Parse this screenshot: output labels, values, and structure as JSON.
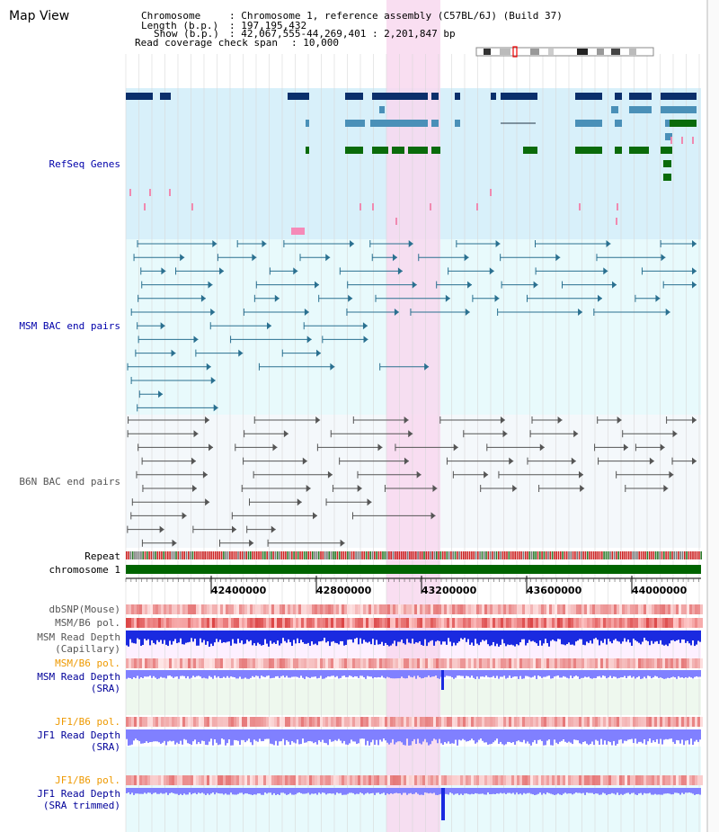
{
  "app": {
    "title": "Map View"
  },
  "header": {
    "chromosome_label": "Chromosome",
    "chromosome_value": ": Chromosome 1, reference assembly (C57BL/6J) (Build 37)",
    "length_label": "Length (b.p.)",
    "length_value": ": 197,195,432",
    "show_label": "Show (b.p.)",
    "show_value": ": 42,067,555-44,269,401 : 2,201,847 bp",
    "coverage_label": "Read coverage check span",
    "coverage_value": ": 10,000"
  },
  "tracks": {
    "refseq": "RefSeq Genes",
    "msm_bac": "MSM BAC end pairs",
    "b6n_bac": "B6N BAC end pairs",
    "repeat": "Repeat",
    "chromosome": "chromosome 1",
    "dbsnp": "dbSNP(Mouse)",
    "msm_b6_pol_1": "MSM/B6 pol.",
    "msm_read_depth_cap_1": "MSM Read Depth",
    "msm_read_depth_cap_2": "(Capillary)",
    "msm_b6_pol_2": "MSM/B6 pol.",
    "msm_read_depth_sra_1": "MSM Read Depth",
    "msm_read_depth_sra_2": "(SRA)",
    "jf1_b6_pol_1": "JF1/B6 pol.",
    "jf1_read_depth_sra_1": "JF1 Read Depth",
    "jf1_read_depth_sra_2": "(SRA)",
    "jf1_b6_pol_2": "JF1/B6 pol.",
    "jf1_read_depth_trim_1": "JF1 Read Depth",
    "jf1_read_depth_trim_2": "(SRA trimmed)"
  },
  "ruler": {
    "ticks": [
      "42400000",
      "42800000",
      "43200000",
      "43600000",
      "44000000"
    ]
  },
  "colors": {
    "refseq_bg": "#d8f0fa",
    "bac_bg": "#e8fafc",
    "b6n_bg": "#f4f8fb",
    "highlight": "#f8d8ef",
    "chromosome_bar": "#006400",
    "dark_gene": "#0b2f6b",
    "mid_gene": "#4a90b8",
    "green_gene": "#0a6b0a",
    "msm_bac": "#2a7090",
    "b6n_bac": "#555555",
    "depth_blue": "#1a2ae0",
    "depth_light": "#8080ff",
    "pol_red": "#f06060",
    "label_blue": "#000099",
    "label_orange": "#ee9900"
  }
}
